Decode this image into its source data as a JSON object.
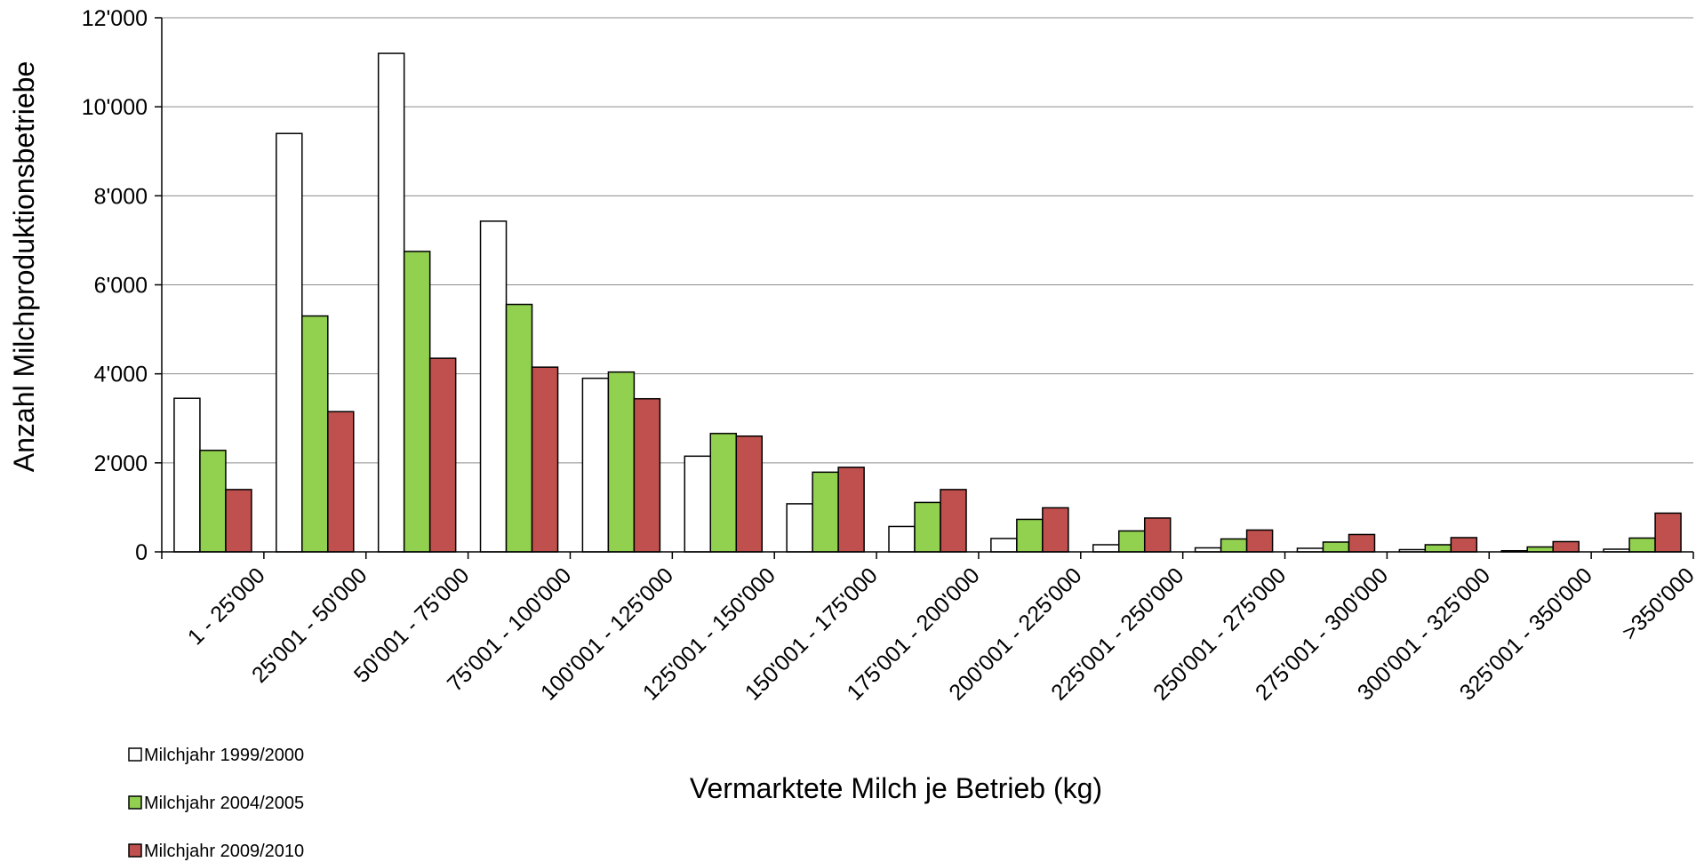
{
  "chart_data": {
    "type": "bar",
    "title": "",
    "xlabel": "Vermarktete Milch je Betrieb (kg)",
    "ylabel": "Anzahl Milchproduktionsbetriebe",
    "ylim": [
      0,
      12000
    ],
    "yticks": [
      0,
      2000,
      4000,
      6000,
      8000,
      10000,
      12000
    ],
    "ytick_labels": [
      "0",
      "2'000",
      "4'000",
      "6'000",
      "8'000",
      "10'000",
      "12'000"
    ],
    "grid": true,
    "legend_position": "bottom-left",
    "categories": [
      "1 - 25'000",
      "25'001 - 50'000",
      "50'001 - 75'000",
      "75'001 - 100'000",
      "100'001 - 125'000",
      "125'001 - 150'000",
      "150'001 - 175'000",
      "175'001 - 200'000",
      "200'001 - 225'000",
      "225'001 - 250'000",
      "250'001 - 275'000",
      "275'001 - 300'000",
      "300'001 - 325'000",
      "325'001 - 350'000",
      ">350'000"
    ],
    "series": [
      {
        "name": "Milchjahr 1999/2000",
        "color": "#ffffff",
        "values": [
          3450,
          9400,
          11200,
          7430,
          3900,
          2150,
          1080,
          570,
          300,
          160,
          90,
          80,
          50,
          25,
          60
        ]
      },
      {
        "name": "Milchjahr 2004/2005",
        "color": "#92d050",
        "values": [
          2280,
          5300,
          6750,
          5560,
          4040,
          2660,
          1790,
          1110,
          730,
          470,
          290,
          220,
          160,
          110,
          310
        ]
      },
      {
        "name": "Milchjahr 2009/2010",
        "color": "#c0504d",
        "values": [
          1400,
          3150,
          4350,
          4150,
          3440,
          2600,
          1900,
          1400,
          990,
          760,
          490,
          390,
          320,
          230,
          870
        ]
      }
    ]
  }
}
